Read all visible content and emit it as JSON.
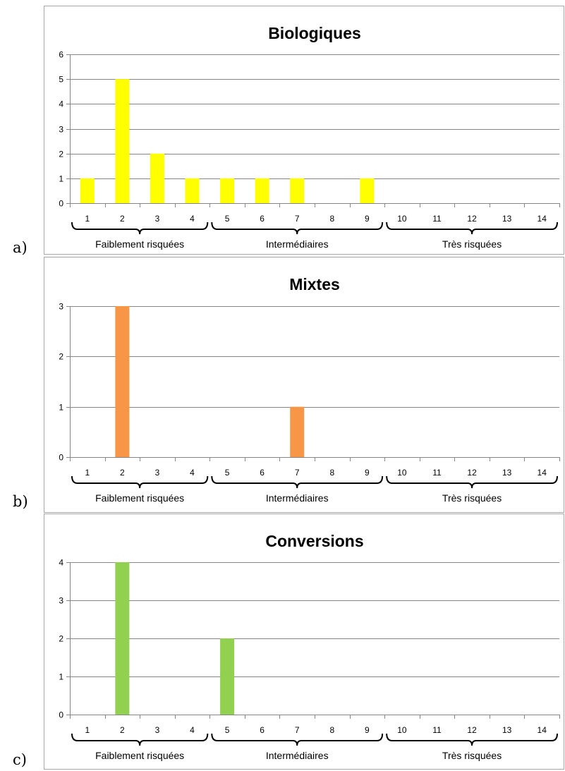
{
  "chart_data": [
    {
      "type": "bar",
      "panel_label": "a)",
      "title": "Biologiques",
      "categories": [
        "1",
        "2",
        "3",
        "4",
        "5",
        "6",
        "7",
        "8",
        "9",
        "10",
        "11",
        "12",
        "13",
        "14"
      ],
      "values": [
        1,
        5,
        2,
        1,
        1,
        1,
        1,
        0,
        1,
        0,
        0,
        0,
        0,
        0
      ],
      "ylim": [
        0,
        6
      ],
      "yticks": [
        0,
        1,
        2,
        3,
        4,
        5,
        6
      ],
      "grid": true,
      "color": "#ffff00",
      "groups": [
        {
          "label": "Faiblement risquées",
          "from": 1,
          "to": 4
        },
        {
          "label": "Intermédiaires",
          "from": 5,
          "to": 9
        },
        {
          "label": "Très risquées",
          "from": 10,
          "to": 14
        }
      ]
    },
    {
      "type": "bar",
      "panel_label": "b)",
      "title": "Mixtes",
      "categories": [
        "1",
        "2",
        "3",
        "4",
        "5",
        "6",
        "7",
        "8",
        "9",
        "10",
        "11",
        "12",
        "13",
        "14"
      ],
      "values": [
        0,
        3,
        0,
        0,
        0,
        0,
        1,
        0,
        0,
        0,
        0,
        0,
        0,
        0
      ],
      "ylim": [
        0,
        3
      ],
      "yticks": [
        0,
        1,
        2,
        3
      ],
      "grid": true,
      "color": "#f79646",
      "groups": [
        {
          "label": "Faiblement risquées",
          "from": 1,
          "to": 4
        },
        {
          "label": "Intermédiaires",
          "from": 5,
          "to": 9
        },
        {
          "label": "Très risquées",
          "from": 10,
          "to": 14
        }
      ]
    },
    {
      "type": "bar",
      "panel_label": "c)",
      "title": "Conversions",
      "categories": [
        "1",
        "2",
        "3",
        "4",
        "5",
        "6",
        "7",
        "8",
        "9",
        "10",
        "11",
        "12",
        "13",
        "14"
      ],
      "values": [
        0,
        4,
        0,
        0,
        2,
        0,
        0,
        0,
        0,
        0,
        0,
        0,
        0,
        0
      ],
      "ylim": [
        0,
        4
      ],
      "yticks": [
        0,
        1,
        2,
        3,
        4
      ],
      "grid": true,
      "color": "#92d050",
      "groups": [
        {
          "label": "Faiblement risquées",
          "from": 1,
          "to": 4
        },
        {
          "label": "Intermédiaires",
          "from": 5,
          "to": 9
        },
        {
          "label": "Très risquées",
          "from": 10,
          "to": 14
        }
      ]
    }
  ]
}
